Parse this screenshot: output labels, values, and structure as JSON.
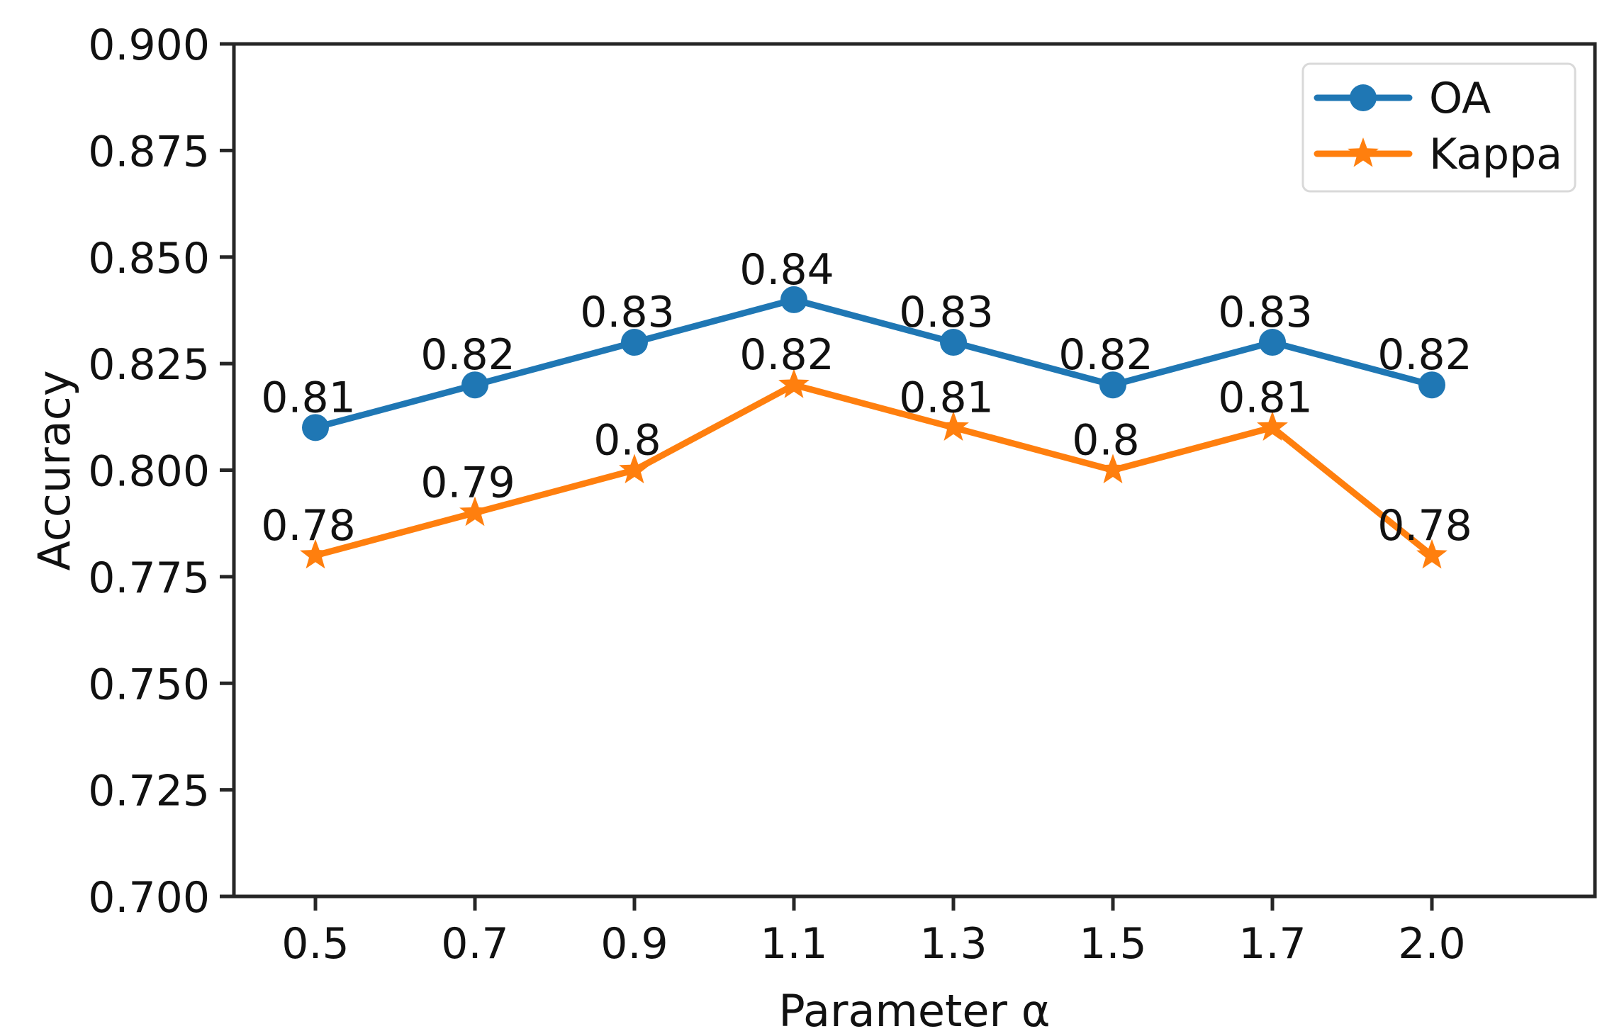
{
  "chart_data": {
    "type": "line",
    "title": "",
    "xlabel": "Parameter α",
    "ylabel": "Accuracy",
    "categories": [
      "0.5",
      "0.7",
      "0.9",
      "1.1",
      "1.3",
      "1.5",
      "1.7",
      "2.0"
    ],
    "x_tick_labels": [
      "0.5",
      "0.7",
      "0.9",
      "1.1",
      "1.3",
      "1.5",
      "1.7",
      "2.0"
    ],
    "ylim": [
      0.7,
      0.9
    ],
    "y_ticks": [
      0.9,
      0.875,
      0.85,
      0.825,
      0.8,
      0.775,
      0.75,
      0.725,
      0.7
    ],
    "y_tick_labels": [
      "0.900",
      "0.875",
      "0.850",
      "0.825",
      "0.800",
      "0.775",
      "0.750",
      "0.725",
      "0.700"
    ],
    "grid": false,
    "legend_position": "upper right",
    "series": [
      {
        "name": "OA",
        "color": "#1f77b4",
        "marker": "circle",
        "values": [
          0.81,
          0.82,
          0.83,
          0.84,
          0.83,
          0.82,
          0.83,
          0.82
        ],
        "point_labels": [
          "0.81",
          "0.82",
          "0.83",
          "0.84",
          "0.83",
          "0.82",
          "0.83",
          "0.82"
        ]
      },
      {
        "name": "Kappa",
        "color": "#ff7f0e",
        "marker": "star",
        "values": [
          0.78,
          0.79,
          0.8,
          0.82,
          0.81,
          0.8,
          0.81,
          0.78
        ],
        "point_labels": [
          "0.78",
          "0.79",
          "0.8",
          "0.82",
          "0.81",
          "0.8",
          "0.81",
          "0.78"
        ]
      }
    ]
  },
  "colors": {
    "background": "#ffffff",
    "axis": "#262626",
    "text": "#111111",
    "legend_border": "#d9d9d9",
    "legend_fill": "#ffffff"
  }
}
